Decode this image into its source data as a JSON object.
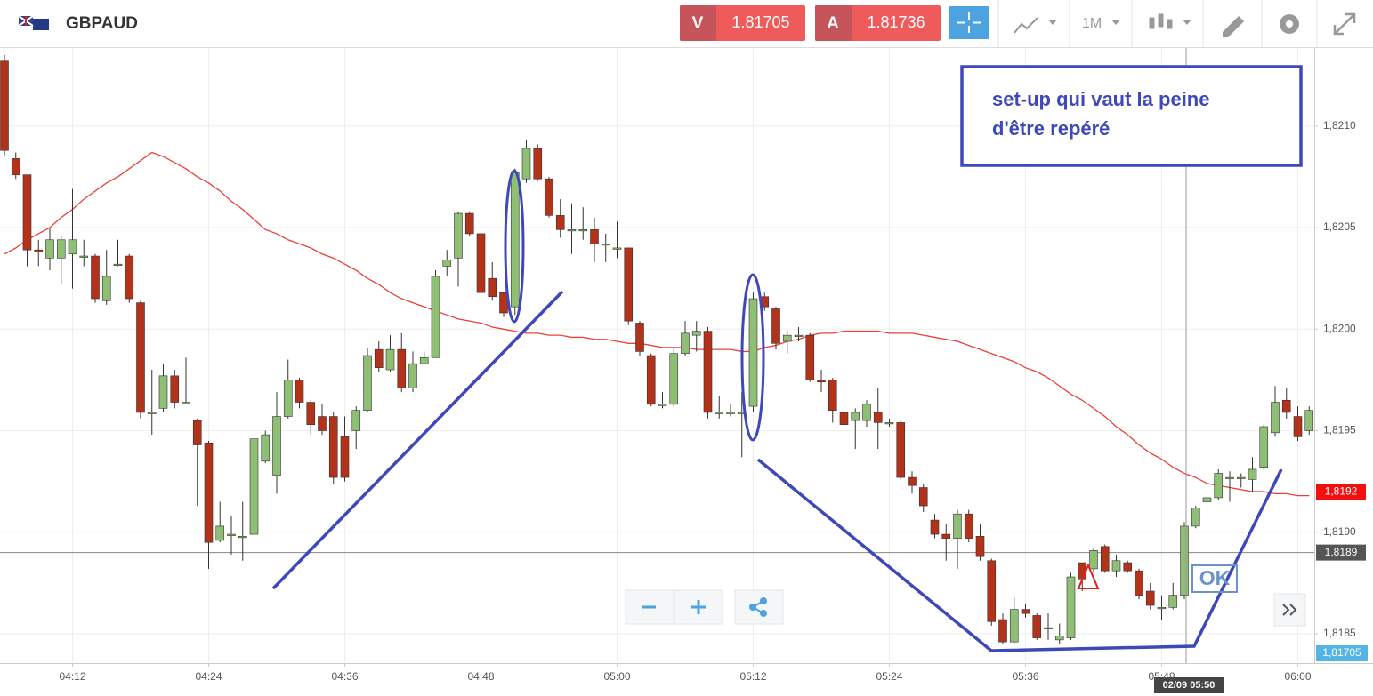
{
  "header": {
    "symbol": "GBPAUD",
    "sell_label": "V",
    "sell_price": 1.81705,
    "buy_label": "A",
    "buy_price": 1.81736,
    "timeframe": "1M"
  },
  "chart_data": {
    "type": "candlestick",
    "categories": [
      null,
      null,
      null,
      null,
      null,
      null,
      "04:12",
      null,
      null,
      null,
      null,
      null,
      null,
      null,
      null,
      null,
      null,
      null,
      "04:24",
      null,
      null,
      null,
      null,
      null,
      null,
      null,
      null,
      null,
      null,
      null,
      "04:36",
      null,
      null,
      null,
      null,
      null,
      null,
      null,
      null,
      null,
      null,
      null,
      "04:48",
      null,
      null,
      null,
      null,
      null,
      null,
      null,
      null,
      null,
      null,
      null,
      "05:00",
      null,
      null,
      null,
      null,
      null,
      null,
      null,
      null,
      null,
      null,
      null,
      "05:12",
      null,
      null,
      null,
      null,
      null,
      null,
      null,
      null,
      null,
      null,
      null,
      "05:24",
      null,
      null,
      null,
      null,
      null,
      null,
      null,
      null,
      null,
      null,
      null,
      "05:36",
      null,
      null,
      null,
      null,
      null,
      null,
      null,
      null,
      null,
      null,
      null,
      "05:48",
      null,
      null,
      null,
      null,
      null,
      null,
      null,
      null,
      null,
      null,
      null,
      "06:00",
      null
    ],
    "open": [
      1.82132,
      1.82084,
      1.82076,
      1.82039,
      1.82035,
      1.82035,
      1.82037,
      1.82036,
      1.82036,
      1.82014,
      1.82032,
      1.82036,
      1.82013,
      1.81959,
      1.81961,
      1.81977,
      1.81964,
      1.81955,
      1.81944,
      1.81896,
      1.81899,
      1.81898,
      1.81899,
      1.81935,
      1.81928,
      1.81957,
      1.81975,
      1.81964,
      1.81957,
      1.81957,
      1.81947,
      1.8195,
      1.8196,
      1.8199,
      1.8198,
      1.8199,
      1.81971,
      1.81983,
      1.81986,
      1.82031,
      1.82035,
      1.82057,
      1.82047,
      1.82025,
      1.82018,
      1.82011,
      1.82074,
      1.82089,
      1.82074,
      1.82056,
      1.82049,
      1.82049,
      1.82049,
      1.82042,
      1.8204,
      1.8204,
      1.82003,
      1.81987,
      1.81963,
      1.81963,
      1.81988,
      1.81997,
      1.81999,
      1.81959,
      1.81959,
      1.81959,
      1.81962,
      1.82016,
      1.8201,
      1.81994,
      1.81997,
      1.81997,
      1.81975,
      1.81975,
      1.81959,
      1.81955,
      1.81955,
      1.81959,
      1.81954,
      1.81954,
      1.81927,
      1.81922,
      1.81906,
      1.81899,
      1.81897,
      1.81909,
      1.81898,
      1.81886,
      1.81857,
      1.81846,
      1.81862,
      1.81859,
      1.81853,
      1.81847,
      1.81848,
      1.81885,
      1.81882,
      1.81893,
      1.81881,
      1.81885,
      1.81881,
      1.81871,
      1.81863,
      1.81863,
      1.81869,
      1.81903,
      1.81915,
      1.81917,
      1.81927,
      1.81927,
      1.81926,
      1.81932,
      1.81949,
      1.81965,
      1.81957,
      1.8195
    ],
    "high": [
      1.82135,
      1.82087,
      1.82076,
      1.82044,
      1.8205,
      1.82046,
      1.82069,
      1.82044,
      1.82037,
      1.82039,
      1.82044,
      1.82037,
      1.82014,
      1.8198,
      1.81983,
      1.8198,
      1.81986,
      1.81956,
      1.81945,
      1.81915,
      1.81908,
      1.81915,
      1.81948,
      1.8195,
      1.81969,
      1.81985,
      1.81976,
      1.81965,
      1.81963,
      1.81959,
      1.81957,
      1.81962,
      1.81991,
      1.81994,
      1.81997,
      1.81998,
      1.81989,
      1.81989,
      1.82029,
      1.82039,
      1.82058,
      1.82058,
      1.82047,
      1.82033,
      1.82018,
      1.82079,
      1.82093,
      1.82091,
      1.82075,
      1.82064,
      1.82062,
      1.8206,
      1.82055,
      1.82047,
      1.82053,
      1.8204,
      1.82004,
      1.81988,
      1.81969,
      1.81991,
      1.82004,
      1.82004,
      1.82001,
      1.81967,
      1.81963,
      1.81969,
      1.82018,
      1.82018,
      1.82011,
      1.81999,
      1.82001,
      1.81998,
      1.8198,
      1.81976,
      1.81963,
      1.81961,
      1.81965,
      1.81971,
      1.81956,
      1.81955,
      1.8193,
      1.81924,
      1.81909,
      1.81904,
      1.81911,
      1.81911,
      1.81904,
      1.81887,
      1.8186,
      1.81868,
      1.81865,
      1.8186,
      1.8186,
      1.81855,
      1.8188,
      1.81885,
      1.81892,
      1.81894,
      1.81889,
      1.81886,
      1.81882,
      1.81875,
      1.81869,
      1.81875,
      1.81905,
      1.81913,
      1.81919,
      1.81931,
      1.8193,
      1.81929,
      1.81937,
      1.81953,
      1.81972,
      1.81971,
      1.81962,
      1.81962
    ],
    "low": [
      1.82085,
      1.82074,
      1.82031,
      1.82031,
      1.82029,
      1.82022,
      1.8202,
      1.82031,
      1.82013,
      1.82012,
      1.82031,
      1.82013,
      1.81956,
      1.81948,
      1.81959,
      1.81961,
      1.81963,
      1.81913,
      1.81882,
      1.81895,
      1.81889,
      1.81886,
      1.81899,
      1.81934,
      1.81919,
      1.81956,
      1.81961,
      1.81948,
      1.81948,
      1.81924,
      1.81925,
      1.81941,
      1.81959,
      1.81979,
      1.81979,
      1.81969,
      1.81969,
      1.81983,
      1.81986,
      1.82026,
      1.82021,
      1.82046,
      1.82013,
      1.82014,
      1.82006,
      1.82007,
      1.82072,
      1.82073,
      1.82055,
      1.82045,
      1.82037,
      1.82044,
      1.82033,
      1.82033,
      1.82035,
      1.82002,
      1.81987,
      1.81962,
      1.81961,
      1.81962,
      1.81987,
      1.81989,
      1.81956,
      1.81956,
      1.81957,
      1.81937,
      1.81959,
      1.82009,
      1.8199,
      1.81988,
      1.81994,
      1.81974,
      1.81969,
      1.81954,
      1.81934,
      1.81941,
      1.81952,
      1.81941,
      1.81952,
      1.81926,
      1.81919,
      1.8191,
      1.81897,
      1.81886,
      1.81882,
      1.81895,
      1.81886,
      1.81854,
      1.81845,
      1.81845,
      1.81858,
      1.81847,
      1.81847,
      1.81845,
      1.81847,
      1.81871,
      1.8188,
      1.8188,
      1.81878,
      1.8188,
      1.81867,
      1.81862,
      1.81857,
      1.81862,
      1.81867,
      1.81902,
      1.8191,
      1.81916,
      1.81915,
      1.81922,
      1.8192,
      1.81931,
      1.81947,
      1.81956,
      1.81945,
      1.81948
    ],
    "close": [
      1.82088,
      1.82076,
      1.82039,
      1.82038,
      1.82044,
      1.82044,
      1.82044,
      1.82036,
      1.82015,
      1.82026,
      1.82032,
      1.82015,
      1.81959,
      1.81959,
      1.81977,
      1.81964,
      1.81964,
      1.81943,
      1.81895,
      1.81903,
      1.81899,
      1.81898,
      1.81946,
      1.81948,
      1.81957,
      1.81975,
      1.81964,
      1.81953,
      1.8195,
      1.81927,
      1.81927,
      1.8196,
      1.81987,
      1.81981,
      1.8199,
      1.81971,
      1.81983,
      1.81986,
      1.82026,
      1.82034,
      1.82057,
      1.82047,
      1.82018,
      1.82016,
      1.82008,
      1.82077,
      1.82089,
      1.82074,
      1.82056,
      1.82049,
      1.82049,
      1.82049,
      1.82042,
      1.82042,
      1.8204,
      1.82004,
      1.81989,
      1.81963,
      1.81963,
      1.81988,
      1.81998,
      1.81999,
      1.81959,
      1.81959,
      1.81959,
      1.81959,
      1.82015,
      1.82011,
      1.81993,
      1.81997,
      1.81997,
      1.81975,
      1.81974,
      1.8196,
      1.81953,
      1.81959,
      1.81963,
      1.81954,
      1.81954,
      1.81927,
      1.81923,
      1.81913,
      1.81899,
      1.81897,
      1.81909,
      1.81897,
      1.81888,
      1.81856,
      1.81846,
      1.81862,
      1.8186,
      1.81848,
      1.81853,
      1.81849,
      1.81878,
      1.81877,
      1.81891,
      1.81881,
      1.81886,
      1.81881,
      1.81869,
      1.81864,
      1.81863,
      1.81869,
      1.81903,
      1.81912,
      1.81917,
      1.81929,
      1.81927,
      1.81927,
      1.81931,
      1.81952,
      1.81964,
      1.81959,
      1.81947,
      1.8196
    ],
    "up_color": "#8fbf74",
    "down_color": "#b3321a",
    "overlay": {
      "color": "#e8413a",
      "values": [
        1.82037,
        1.8204,
        1.82044,
        1.82047,
        1.8205,
        1.82055,
        1.82059,
        1.82064,
        1.82068,
        1.82072,
        1.82075,
        1.82079,
        1.82083,
        1.82087,
        1.82085,
        1.82082,
        1.82079,
        1.82075,
        1.82072,
        1.82068,
        1.82063,
        1.82059,
        1.82054,
        1.82049,
        1.82047,
        1.82044,
        1.82042,
        1.8204,
        1.82037,
        1.82035,
        1.82032,
        1.82029,
        1.82025,
        1.82022,
        1.82018,
        1.82015,
        1.82013,
        1.82011,
        1.82009,
        1.82007,
        1.82005,
        1.82004,
        1.82003,
        1.82001,
        1.82,
        1.81999,
        1.81998,
        1.81998,
        1.81997,
        1.81997,
        1.81996,
        1.81996,
        1.81995,
        1.81995,
        1.81994,
        1.81993,
        1.81993,
        1.81992,
        1.81991,
        1.81991,
        1.81991,
        1.8199,
        1.8199,
        1.8199,
        1.8199,
        1.81989,
        1.81989,
        1.81991,
        1.81992,
        1.81994,
        1.81995,
        1.81997,
        1.81998,
        1.81998,
        1.81999,
        1.81999,
        1.81999,
        1.81999,
        1.81998,
        1.81998,
        1.81998,
        1.81997,
        1.81996,
        1.81995,
        1.81994,
        1.81992,
        1.8199,
        1.81988,
        1.81986,
        1.81984,
        1.81981,
        1.81979,
        1.81976,
        1.81972,
        1.81968,
        1.81965,
        1.81961,
        1.81957,
        1.81952,
        1.81948,
        1.81943,
        1.81939,
        1.81936,
        1.81932,
        1.81929,
        1.81927,
        1.81924,
        1.81923,
        1.81922,
        1.81921,
        1.8192,
        1.8192,
        1.81919,
        1.81919,
        1.81918,
        1.81918
      ]
    },
    "ylim": [
      1.81836,
      1.82138
    ],
    "yticks": [
      {
        "value": 1.8185,
        "label": "1,8185"
      },
      {
        "value": 1.819,
        "label": "1,8190"
      },
      {
        "value": 1.8195,
        "label": "1,8195"
      },
      {
        "value": 1.82,
        "label": "1,8200"
      },
      {
        "value": 1.8205,
        "label": "1,8205"
      },
      {
        "value": 1.821,
        "label": "1,8210"
      }
    ],
    "grid": true,
    "overlay_tag": {
      "value": 1.8192,
      "label": "1,8192"
    },
    "price_line": {
      "value": 1.8189,
      "label": "1,8189"
    },
    "bid_tag": "1,81705",
    "crosshair_time": "02/09 05:50",
    "annotation": [
      "set-up qui vaut la peine",
      "d'être repéré"
    ],
    "ok_label": "OK"
  }
}
